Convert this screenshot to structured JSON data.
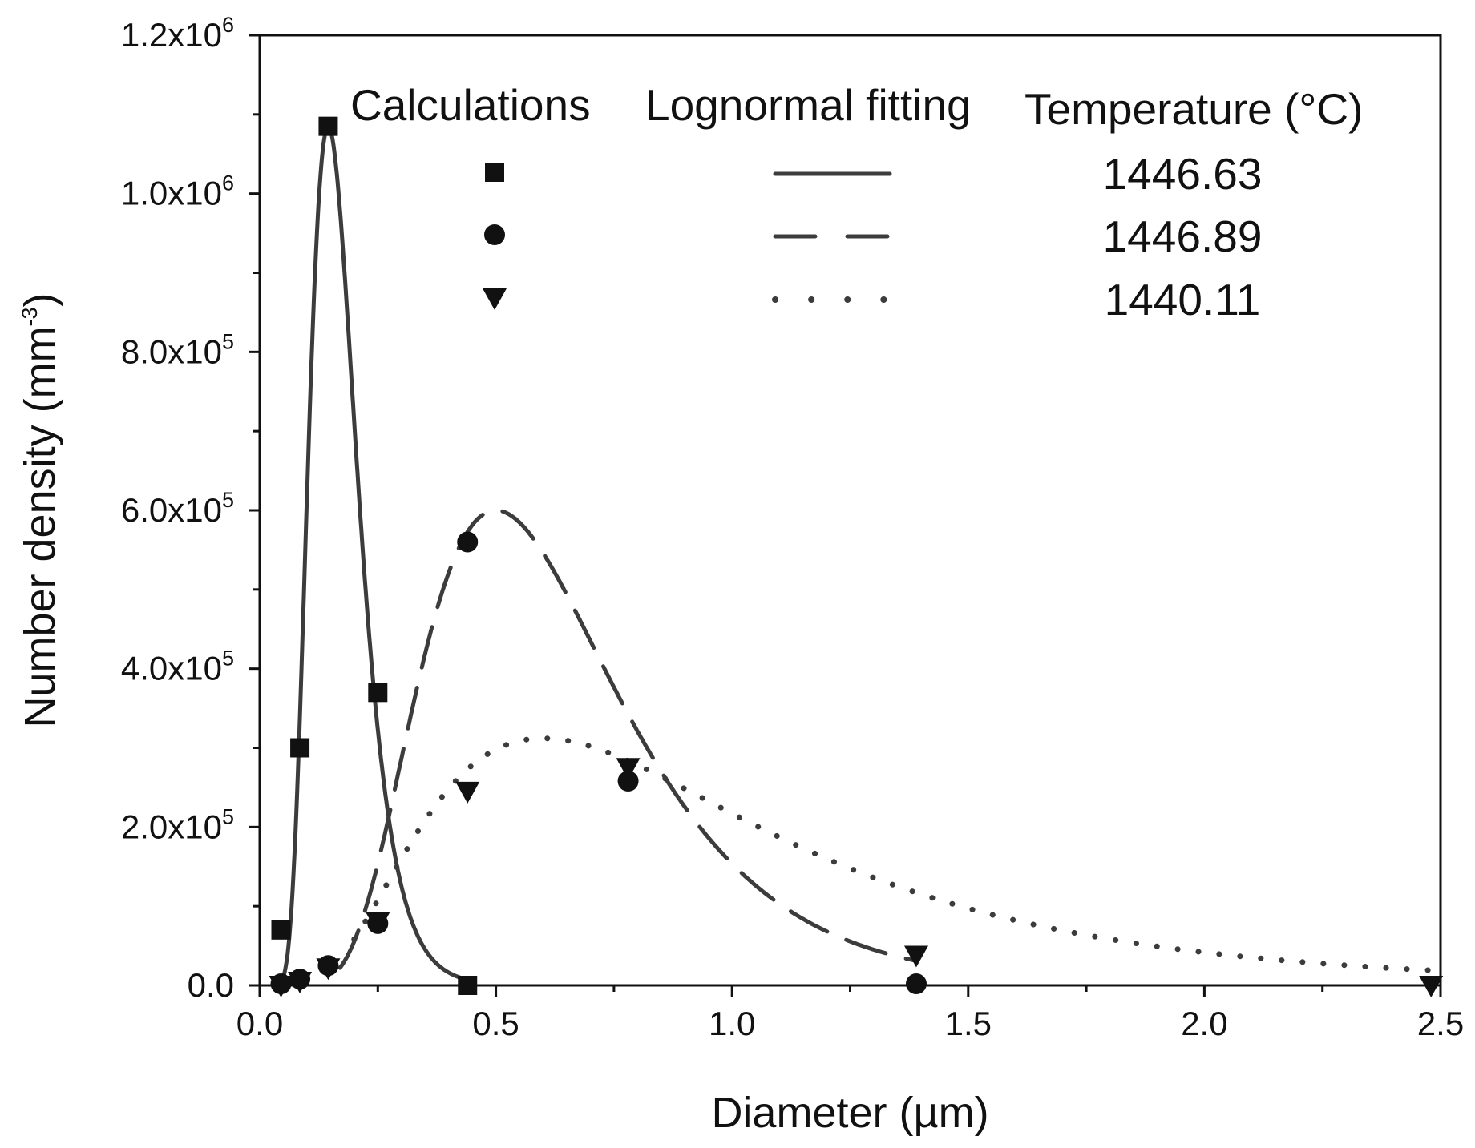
{
  "chart_data": {
    "type": "scatter",
    "xlabel": "Diameter (µm)",
    "ylabel_main": "Number density (mm",
    "ylabel_exp": "-3",
    "ylabel_close": ")",
    "xlim": [
      0.0,
      2.5
    ],
    "ylim": [
      0,
      1200000
    ],
    "x_ticks": [
      {
        "value": 0.0,
        "label": "0.0"
      },
      {
        "value": 0.5,
        "label": "0.5"
      },
      {
        "value": 1.0,
        "label": "1.0"
      },
      {
        "value": 1.5,
        "label": "1.5"
      },
      {
        "value": 2.0,
        "label": "2.0"
      },
      {
        "value": 2.5,
        "label": "2.5"
      }
    ],
    "y_ticks": [
      {
        "value": 0,
        "label": "0.0",
        "exp": ""
      },
      {
        "value": 200000,
        "label": "2.0x10",
        "exp": "5"
      },
      {
        "value": 400000,
        "label": "4.0x10",
        "exp": "5"
      },
      {
        "value": 600000,
        "label": "6.0x10",
        "exp": "5"
      },
      {
        "value": 800000,
        "label": "8.0x10",
        "exp": "5"
      },
      {
        "value": 1000000,
        "label": "1.0x10",
        "exp": "6"
      },
      {
        "value": 1200000,
        "label": "1.2x10",
        "exp": "6"
      }
    ],
    "legend": {
      "col_calculations": "Calculations",
      "col_fitting": "Lognormal fitting",
      "col_temperature": "Temperature (°C)",
      "placement": "top-right"
    },
    "series": [
      {
        "name": "1446.63",
        "marker": "square",
        "line_style": "solid",
        "color": "#111111",
        "fit_color": "#3c3c3c",
        "points": [
          {
            "x": 0.045,
            "y": 70000
          },
          {
            "x": 0.085,
            "y": 300000
          },
          {
            "x": 0.145,
            "y": 1085000
          },
          {
            "x": 0.25,
            "y": 370000
          },
          {
            "x": 0.44,
            "y": 0
          }
        ],
        "fit": {
          "peak": 1085000,
          "mode": 0.145,
          "sigma": 0.35,
          "x_start": 0.045,
          "x_end": 0.45
        }
      },
      {
        "name": "1446.89",
        "marker": "circle",
        "line_style": "dashed",
        "color": "#111111",
        "fit_color": "#3c3c3c",
        "points": [
          {
            "x": 0.045,
            "y": 2000
          },
          {
            "x": 0.085,
            "y": 8000
          },
          {
            "x": 0.145,
            "y": 25000
          },
          {
            "x": 0.25,
            "y": 78000
          },
          {
            "x": 0.44,
            "y": 560000
          },
          {
            "x": 0.78,
            "y": 258000
          },
          {
            "x": 1.39,
            "y": 2000
          }
        ],
        "fit": {
          "peak": 600000,
          "mode": 0.5,
          "sigma": 0.42,
          "x_start": 0.17,
          "x_end": 1.39
        }
      },
      {
        "name": "1440.11",
        "marker": "triangle-down",
        "line_style": "dotted",
        "color": "#111111",
        "fit_color": "#3c3c3c",
        "points": [
          {
            "x": 0.045,
            "y": 0
          },
          {
            "x": 0.085,
            "y": 5000
          },
          {
            "x": 0.145,
            "y": 22000
          },
          {
            "x": 0.25,
            "y": 80000
          },
          {
            "x": 0.44,
            "y": 245000
          },
          {
            "x": 0.78,
            "y": 275000
          },
          {
            "x": 1.39,
            "y": 38000
          },
          {
            "x": 2.48,
            "y": 0
          }
        ],
        "fit": {
          "peak": 312000,
          "mode": 0.6,
          "sigma": 0.6,
          "x_start": 0.2,
          "x_end": 2.5
        }
      }
    ]
  }
}
